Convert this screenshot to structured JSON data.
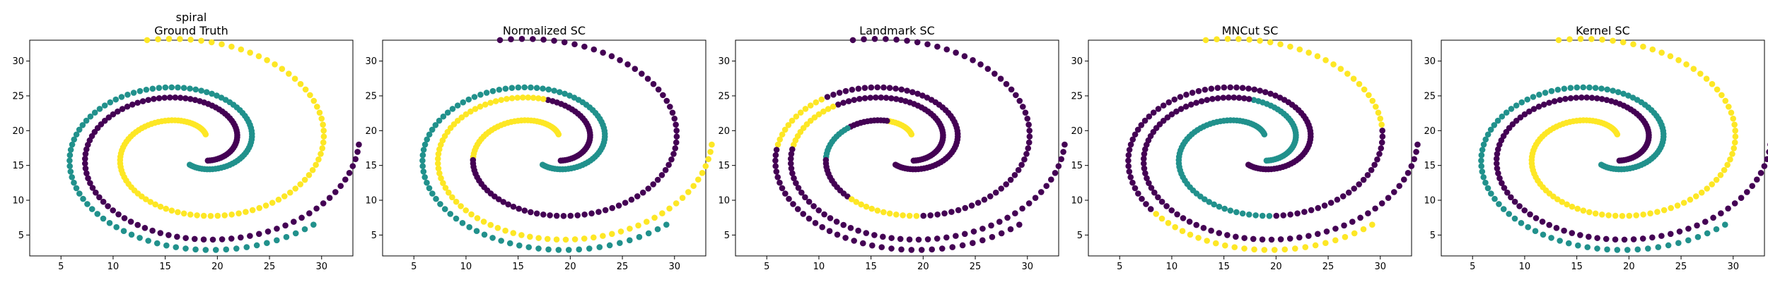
{
  "colors": {
    "c0": "#440154",
    "c1": "#21918c",
    "c2": "#fde725"
  },
  "chart_data": [
    {
      "type": "scatter",
      "title_lines": [
        "spiral",
        "Ground Truth"
      ],
      "xlim": [
        2,
        33
      ],
      "ylim": [
        2,
        33
      ],
      "xticks": [
        5,
        10,
        15,
        20,
        25,
        30
      ],
      "yticks": [
        5,
        10,
        15,
        20,
        25,
        30
      ],
      "labels": {
        "A": [
          1,
          1,
          1,
          1,
          1,
          1,
          1,
          1,
          1
        ],
        "B": [
          2,
          2,
          2,
          2,
          2,
          2,
          2,
          2,
          2
        ],
        "C": [
          0,
          0,
          0,
          0,
          0,
          0,
          0,
          0,
          0
        ]
      }
    },
    {
      "type": "scatter",
      "title_lines": [
        "Normalized SC"
      ],
      "xlim": [
        2,
        33
      ],
      "ylim": [
        2,
        33
      ],
      "xticks": [
        5,
        10,
        15,
        20,
        25,
        30
      ],
      "yticks": [
        5,
        10,
        15,
        20,
        25,
        30
      ],
      "labels": {
        "A": [
          1,
          1,
          1,
          1,
          1,
          1,
          1,
          1,
          1
        ],
        "B": [
          2,
          2,
          2,
          0,
          0,
          0,
          0,
          0,
          0
        ],
        "C": [
          0,
          0,
          0,
          2,
          2,
          2,
          2,
          2,
          2
        ]
      }
    },
    {
      "type": "scatter",
      "title_lines": [
        "Landmark SC"
      ],
      "xlim": [
        2,
        33
      ],
      "ylim": [
        2,
        33
      ],
      "xticks": [
        5,
        10,
        15,
        20,
        25,
        30
      ],
      "yticks": [
        5,
        10,
        15,
        20,
        25,
        30
      ],
      "labels": {
        "A": [
          0,
          0,
          0,
          0,
          0,
          2,
          0,
          0,
          0
        ],
        "B": [
          2,
          0,
          1,
          0,
          2,
          0,
          0,
          0,
          0
        ],
        "C": [
          0,
          0,
          0,
          0,
          2,
          0,
          0,
          0,
          0
        ]
      }
    },
    {
      "type": "scatter",
      "title_lines": [
        "MNCut SC"
      ],
      "xlim": [
        2,
        33
      ],
      "ylim": [
        2,
        33
      ],
      "xticks": [
        5,
        10,
        15,
        20,
        25,
        30
      ],
      "yticks": [
        5,
        10,
        15,
        20,
        25,
        30
      ],
      "labels": {
        "A": [
          0,
          0,
          0,
          0,
          0,
          0,
          0,
          2,
          2
        ],
        "B": [
          1,
          1,
          1,
          1,
          1,
          0,
          0,
          2,
          2
        ],
        "C": [
          1,
          1,
          1,
          0,
          0,
          0,
          0,
          0,
          0
        ]
      }
    },
    {
      "type": "scatter",
      "title_lines": [
        "Kernel SC"
      ],
      "xlim": [
        2,
        33
      ],
      "ylim": [
        2,
        33
      ],
      "xticks": [
        5,
        10,
        15,
        20,
        25,
        30
      ],
      "yticks": [
        5,
        10,
        15,
        20,
        25,
        30
      ],
      "labels": {
        "A": [
          1,
          1,
          1,
          1,
          1,
          1,
          1,
          1,
          1
        ],
        "B": [
          2,
          2,
          2,
          2,
          2,
          2,
          2,
          2,
          2
        ],
        "C": [
          0,
          0,
          0,
          0,
          0,
          0,
          0,
          0,
          0
        ]
      }
    }
  ]
}
